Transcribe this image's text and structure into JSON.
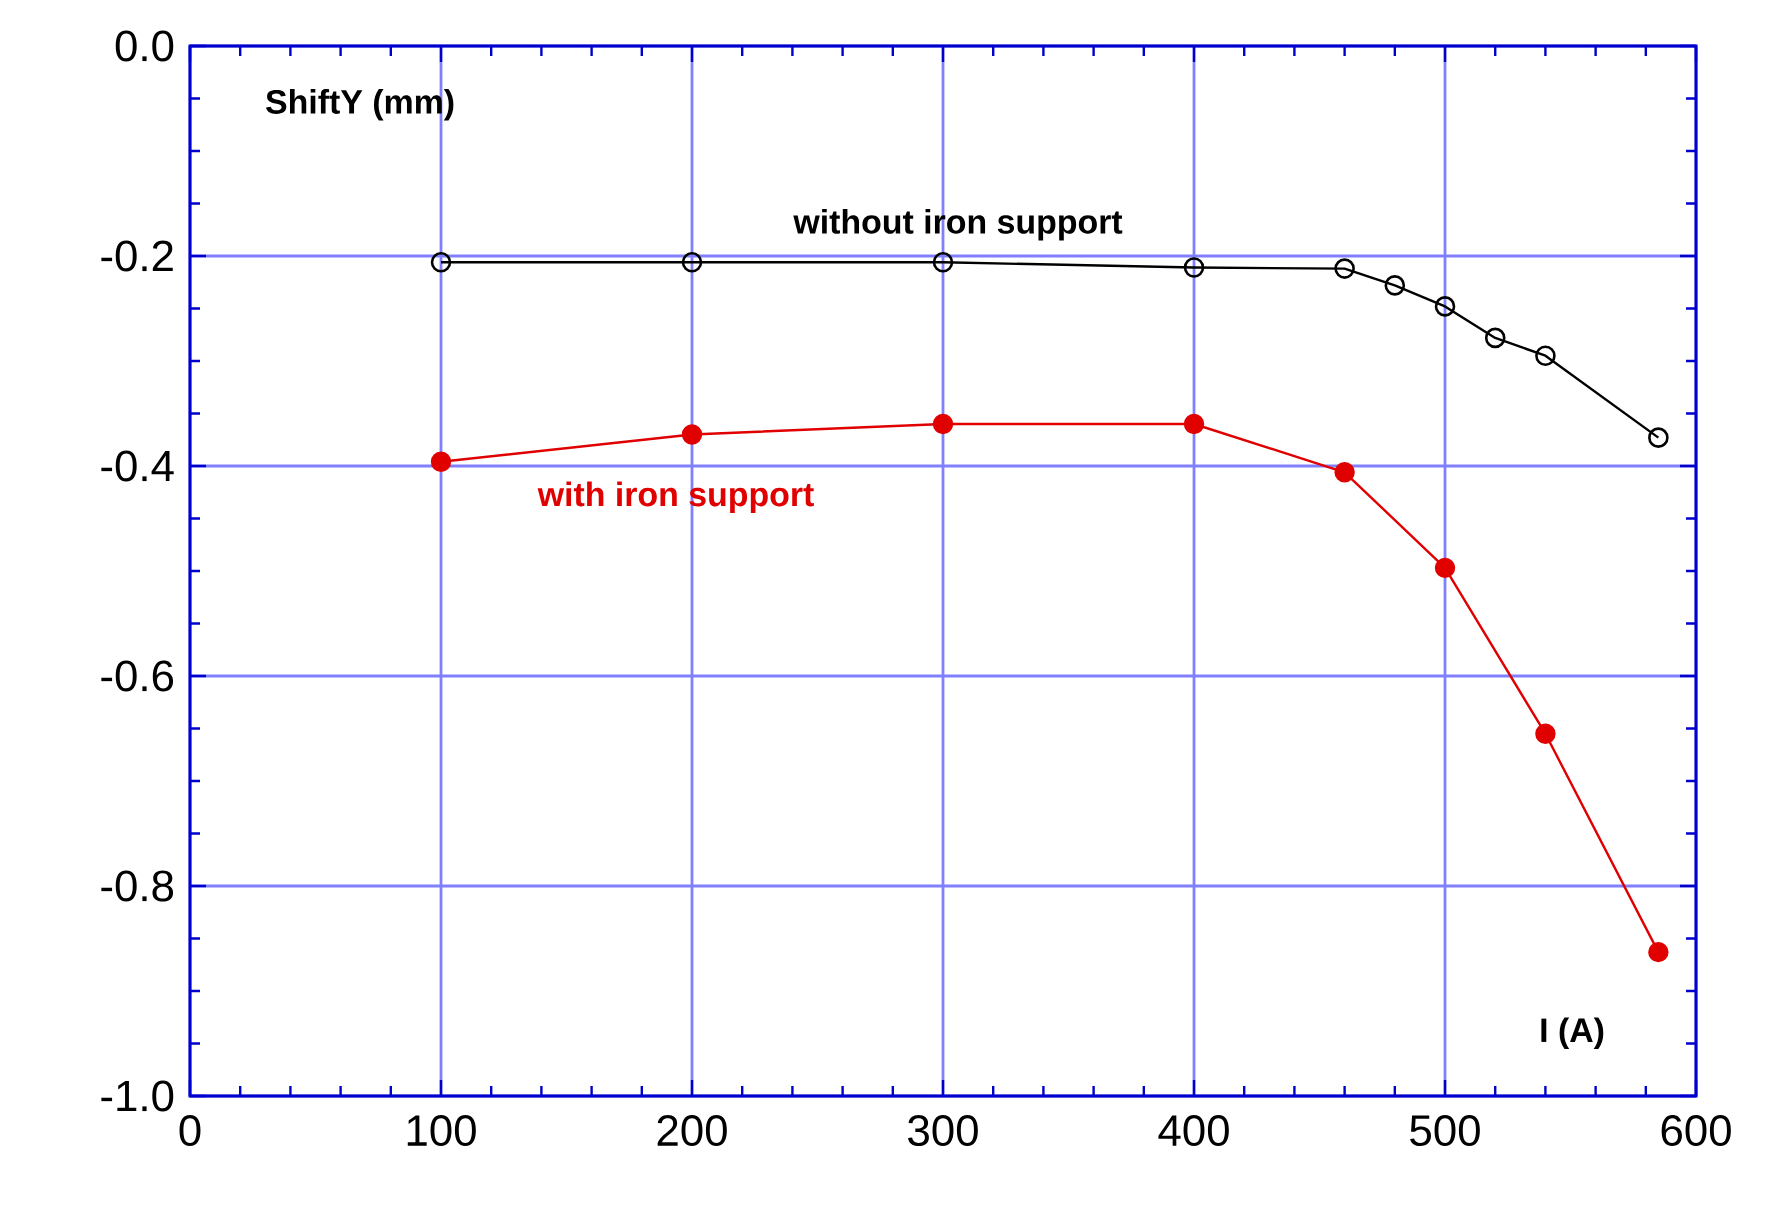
{
  "chart_data": {
    "type": "line",
    "xlabel": "I (A)",
    "ylabel": "ShiftY (mm)",
    "xlim": [
      0,
      600
    ],
    "ylim": [
      -1.0,
      0.0
    ],
    "xticks": [
      0,
      100,
      200,
      300,
      400,
      500,
      600
    ],
    "yticks": [
      {
        "value": -1.0,
        "label": "-1.0"
      },
      -0.8,
      -0.6,
      -0.4,
      -0.2,
      {
        "value": 0.0,
        "label": "0.0"
      }
    ],
    "grid": true,
    "line_style": "solid",
    "series": [
      {
        "name": "without iron support",
        "color": "#000000",
        "marker": "circle-open",
        "x": [
          100,
          200,
          300,
          400,
          460,
          480,
          500,
          520,
          540,
          585
        ],
        "values": [
          -0.206,
          -0.206,
          -0.206,
          -0.211,
          -0.212,
          -0.228,
          -0.248,
          -0.278,
          -0.295,
          -0.373
        ]
      },
      {
        "name": "with iron support",
        "color": "#e00000",
        "marker": "circle",
        "x": [
          100,
          200,
          300,
          400,
          460,
          500,
          540,
          585
        ],
        "values": [
          -0.396,
          -0.37,
          -0.36,
          -0.36,
          -0.406,
          -0.497,
          -0.655,
          -0.863
        ]
      }
    ]
  }
}
